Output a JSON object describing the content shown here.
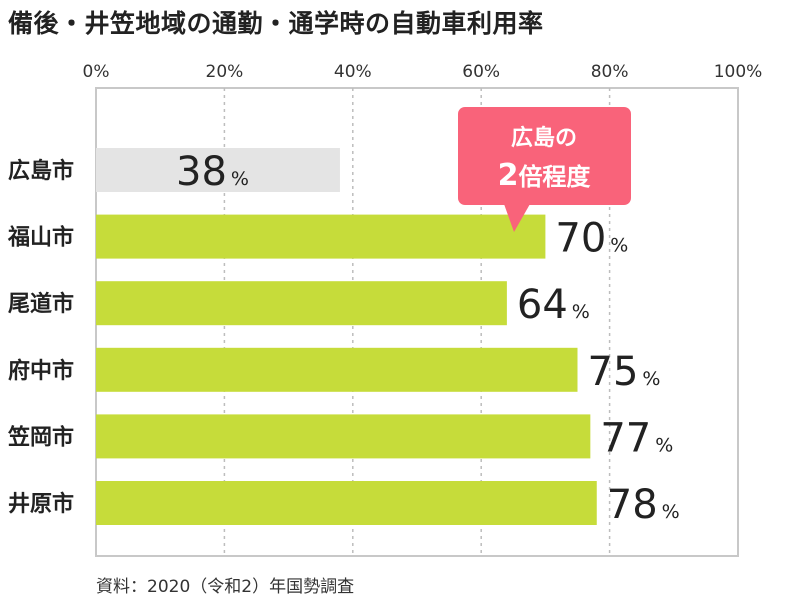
{
  "title": "備後・井笠地域の通勤・通学時の自動車利用率",
  "source": "資料：2020（令和2）年国勢調査",
  "callout": {
    "line1": "広島の",
    "line2_num": "2",
    "line2_text": "倍程度",
    "color": "#f9637a"
  },
  "colors": {
    "highlight_bar": "#c6dc3a",
    "base_bar": "#e4e4e4",
    "grid": "#bdbdbd",
    "frame": "#c8c8c8"
  },
  "chart_data": {
    "type": "bar",
    "orientation": "horizontal",
    "categories": [
      "広島市",
      "福山市",
      "尾道市",
      "府中市",
      "笠岡市",
      "井原市"
    ],
    "values": [
      38,
      70,
      64,
      75,
      77,
      78
    ],
    "value_unit": "%",
    "xlim": [
      0,
      100
    ],
    "ticks": [
      "0%",
      "20%",
      "40%",
      "60%",
      "80%",
      "100%"
    ],
    "tick_values": [
      0,
      20,
      40,
      60,
      80,
      100
    ],
    "grid": true,
    "axis_position": "top"
  }
}
